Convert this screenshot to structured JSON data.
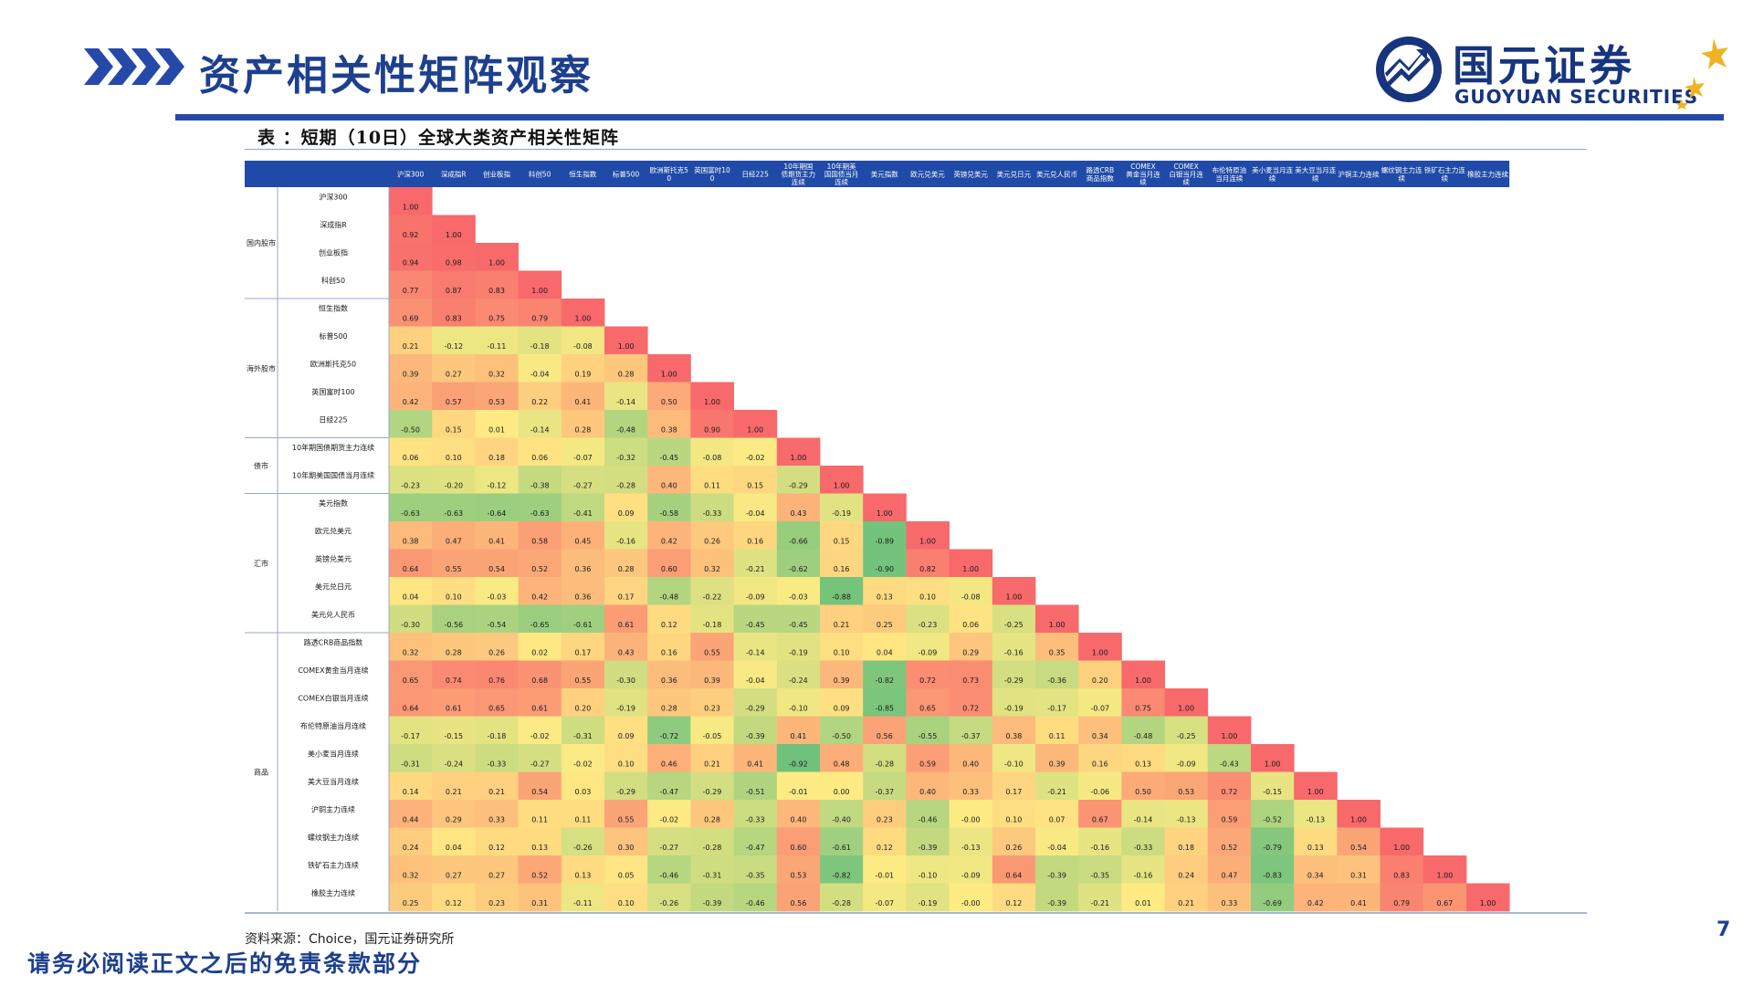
{
  "header": {
    "title": "资产相关性矩阵观察",
    "logo_cn": "国元证券",
    "logo_en": "GUOYUAN SECURITIES"
  },
  "colors": {
    "brand_blue": "#1d3f8f",
    "header_bar": "#2549a8",
    "logo_gold": "#f0b323",
    "cell_high": "#f8696b",
    "cell_mid": "#ffeb84",
    "cell_low": "#63be7b"
  },
  "table": {
    "caption": "表 ：短期（10日）全球大类资产相关性矩阵",
    "columns": [
      "沪深300",
      "深成指R",
      "创业板指",
      "科创50",
      "恒生指数",
      "标普500",
      "欧洲斯托克50",
      "英国富时100",
      "日经225",
      "10年期国债期货主力连续",
      "10年期美国国债当月连续",
      "美元指数",
      "欧元兑美元",
      "英镑兑美元",
      "美元兑日元",
      "美元兑人民币",
      "路透CRB商品指数",
      "COMEX黄金当月连续",
      "COMEX白银当月连续",
      "布伦特原油当月连续",
      "美小麦当月连续",
      "美大豆当月连续",
      "沪铜主力连续",
      "螺纹钢主力连续",
      "铁矿石主力连续",
      "橡胶主力连续"
    ],
    "groups": [
      {
        "name": "国内股市",
        "count": 4
      },
      {
        "name": "海外股市",
        "count": 5
      },
      {
        "name": "债市",
        "count": 2
      },
      {
        "name": "汇市",
        "count": 5
      },
      {
        "name": "商品",
        "count": 10
      }
    ],
    "rows": [
      {
        "label": "沪深300",
        "values": [
          "1.00"
        ]
      },
      {
        "label": "深成指R",
        "values": [
          "0.92",
          "1.00"
        ]
      },
      {
        "label": "创业板指",
        "values": [
          "0.94",
          "0.98",
          "1.00"
        ]
      },
      {
        "label": "科创50",
        "values": [
          "0.77",
          "0.87",
          "0.83",
          "1.00"
        ]
      },
      {
        "label": "恒生指数",
        "values": [
          "0.69",
          "0.83",
          "0.75",
          "0.79",
          "1.00"
        ]
      },
      {
        "label": "标普500",
        "values": [
          "0.21",
          "-0.12",
          "-0.11",
          "-0.18",
          "-0.08",
          "1.00"
        ]
      },
      {
        "label": "欧洲斯托克50",
        "values": [
          "0.39",
          "0.27",
          "0.32",
          "-0.04",
          "0.19",
          "0.28",
          "1.00"
        ]
      },
      {
        "label": "英国富时100",
        "values": [
          "0.42",
          "0.57",
          "0.53",
          "0.22",
          "0.41",
          "-0.14",
          "0.50",
          "1.00"
        ]
      },
      {
        "label": "日经225",
        "values": [
          "-0.50",
          "0.15",
          "0.01",
          "-0.14",
          "0.28",
          "-0.48",
          "0.38",
          "0.90",
          "1.00"
        ]
      },
      {
        "label": "10年期国债期货主力连续",
        "values": [
          "0.06",
          "0.10",
          "0.18",
          "0.06",
          "-0.07",
          "-0.32",
          "-0.45",
          "-0.08",
          "-0.02",
          "1.00"
        ]
      },
      {
        "label": "10年期美国国债当月连续",
        "values": [
          "-0.23",
          "-0.20",
          "-0.12",
          "-0.38",
          "-0.27",
          "-0.28",
          "0.40",
          "0.11",
          "0.15",
          "-0.29",
          "1.00"
        ]
      },
      {
        "label": "美元指数",
        "values": [
          "-0.63",
          "-0.63",
          "-0.64",
          "-0.63",
          "-0.41",
          "0.09",
          "-0.58",
          "-0.33",
          "-0.04",
          "0.43",
          "-0.19",
          "1.00"
        ]
      },
      {
        "label": "欧元兑美元",
        "values": [
          "0.38",
          "0.47",
          "0.41",
          "0.58",
          "0.45",
          "-0.16",
          "0.42",
          "0.26",
          "0.16",
          "-0.66",
          "0.15",
          "-0.89",
          "1.00"
        ]
      },
      {
        "label": "英镑兑美元",
        "values": [
          "0.64",
          "0.55",
          "0.54",
          "0.52",
          "0.36",
          "0.28",
          "0.60",
          "0.32",
          "-0.21",
          "-0.62",
          "0.16",
          "-0.90",
          "0.82",
          "1.00"
        ]
      },
      {
        "label": "美元兑日元",
        "values": [
          "0.04",
          "0.10",
          "-0.03",
          "0.42",
          "0.36",
          "0.17",
          "-0.48",
          "-0.22",
          "-0.09",
          "-0.03",
          "-0.88",
          "0.13",
          "0.10",
          "-0.08",
          "1.00"
        ]
      },
      {
        "label": "美元兑人民币",
        "values": [
          "-0.30",
          "-0.56",
          "-0.54",
          "-0.65",
          "-0.61",
          "0.61",
          "0.12",
          "-0.18",
          "-0.45",
          "-0.45",
          "0.21",
          "0.25",
          "-0.23",
          "0.06",
          "-0.25",
          "1.00"
        ]
      },
      {
        "label": "路透CRB商品指数",
        "values": [
          "0.32",
          "0.28",
          "0.26",
          "0.02",
          "0.17",
          "0.43",
          "0.16",
          "0.55",
          "-0.14",
          "-0.19",
          "0.10",
          "0.04",
          "-0.09",
          "0.29",
          "-0.16",
          "0.35",
          "1.00"
        ]
      },
      {
        "label": "COMEX黄金当月连续",
        "values": [
          "0.65",
          "0.74",
          "0.76",
          "0.68",
          "0.55",
          "-0.30",
          "0.36",
          "0.39",
          "-0.04",
          "-0.24",
          "0.39",
          "-0.82",
          "0.72",
          "0.73",
          "-0.29",
          "-0.36",
          "0.20",
          "1.00"
        ]
      },
      {
        "label": "COMEX白银当月连续",
        "values": [
          "0.64",
          "0.61",
          "0.65",
          "0.61",
          "0.20",
          "-0.19",
          "0.28",
          "0.23",
          "-0.29",
          "-0.10",
          "0.09",
          "-0.85",
          "0.65",
          "0.72",
          "-0.19",
          "-0.17",
          "-0.07",
          "0.75",
          "1.00"
        ]
      },
      {
        "label": "布伦特原油当月连续",
        "values": [
          "-0.17",
          "-0.15",
          "-0.18",
          "-0.02",
          "-0.31",
          "0.09",
          "-0.72",
          "-0.05",
          "-0.39",
          "0.41",
          "-0.50",
          "0.56",
          "-0.55",
          "-0.37",
          "0.38",
          "0.11",
          "0.34",
          "-0.48",
          "-0.25",
          "1.00"
        ]
      },
      {
        "label": "美小麦当月连续",
        "values": [
          "-0.31",
          "-0.24",
          "-0.33",
          "-0.27",
          "-0.02",
          "0.10",
          "0.46",
          "0.21",
          "0.41",
          "-0.92",
          "0.48",
          "-0.28",
          "0.59",
          "0.40",
          "-0.10",
          "0.39",
          "0.16",
          "0.13",
          "-0.09",
          "-0.43",
          "1.00"
        ]
      },
      {
        "label": "美大豆当月连续",
        "values": [
          "0.14",
          "0.21",
          "0.21",
          "0.54",
          "0.03",
          "-0.29",
          "-0.47",
          "-0.29",
          "-0.51",
          "-0.01",
          "0.00",
          "-0.37",
          "0.40",
          "0.33",
          "0.17",
          "-0.21",
          "-0.06",
          "0.50",
          "0.53",
          "0.72",
          "-0.15",
          "1.00"
        ]
      },
      {
        "label": "沪铜主力连续",
        "values": [
          "0.44",
          "0.29",
          "0.33",
          "0.11",
          "0.11",
          "0.55",
          "-0.02",
          "0.28",
          "-0.33",
          "0.40",
          "-0.40",
          "0.23",
          "-0.46",
          "-0.00",
          "0.10",
          "0.07",
          "0.67",
          "-0.14",
          "-0.13",
          "0.59",
          "-0.52",
          "-0.13",
          "1.00"
        ]
      },
      {
        "label": "螺纹钢主力连续",
        "values": [
          "0.24",
          "0.04",
          "0.12",
          "0.13",
          "-0.26",
          "0.30",
          "-0.27",
          "-0.28",
          "-0.47",
          "0.60",
          "-0.61",
          "0.12",
          "-0.39",
          "-0.13",
          "0.26",
          "-0.04",
          "-0.16",
          "-0.33",
          "0.18",
          "0.52",
          "-0.79",
          "0.13",
          "0.54",
          "1.00"
        ]
      },
      {
        "label": "铁矿石主力连续",
        "values": [
          "0.32",
          "0.27",
          "0.27",
          "0.52",
          "0.13",
          "0.05",
          "-0.46",
          "-0.31",
          "-0.35",
          "0.53",
          "-0.82",
          "-0.01",
          "-0.10",
          "-0.09",
          "0.64",
          "-0.39",
          "-0.35",
          "-0.16",
          "0.24",
          "0.47",
          "-0.83",
          "0.34",
          "0.31",
          "0.83",
          "1.00"
        ]
      },
      {
        "label": "橡胶主力连续",
        "values": [
          "0.25",
          "0.12",
          "0.23",
          "0.31",
          "-0.11",
          "0.10",
          "-0.26",
          "-0.39",
          "-0.46",
          "0.56",
          "-0.28",
          "-0.07",
          "-0.19",
          "-0.00",
          "0.12",
          "-0.39",
          "-0.21",
          "0.01",
          "0.21",
          "0.33",
          "-0.69",
          "0.42",
          "0.41",
          "0.79",
          "0.67",
          "1.00"
        ]
      }
    ]
  },
  "footer": {
    "source": "资料来源：Choice，国元证券研究所",
    "page_number": "7",
    "disclaimer": "请务必阅读正文之后的免责条款部分"
  }
}
